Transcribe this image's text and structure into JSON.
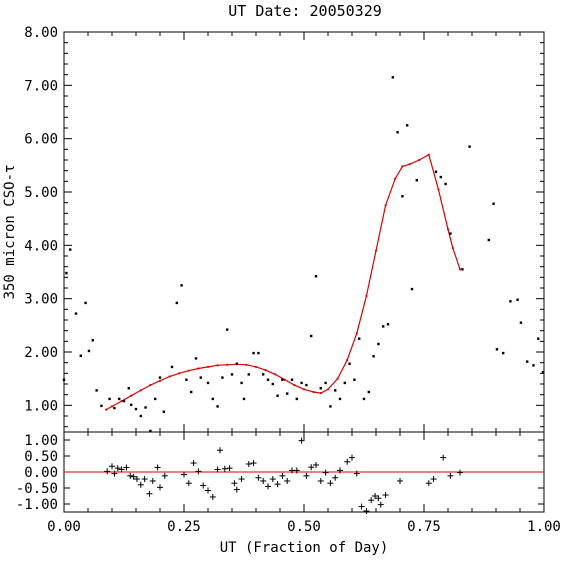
{
  "chart_data": {
    "type": "scatter",
    "title": "UT Date: 20050329",
    "xlabel": "UT (Fraction of Day)",
    "ylabel": "350 micron CSO-τ",
    "xlim": [
      0.0,
      1.0
    ],
    "x_ticks": [
      "0.00",
      "0.25",
      "0.50",
      "0.75",
      "1.00"
    ],
    "top_panel": {
      "ylim": [
        0.5,
        8.0
      ],
      "y_ticks": [
        "1.00",
        "2.00",
        "3.00",
        "4.00",
        "5.00",
        "6.00",
        "7.00",
        "8.00"
      ],
      "points": [
        [
          0.0,
          1.48
        ],
        [
          0.005,
          3.48
        ],
        [
          0.013,
          3.92
        ],
        [
          0.025,
          2.72
        ],
        [
          0.035,
          1.93
        ],
        [
          0.045,
          2.92
        ],
        [
          0.052,
          2.02
        ],
        [
          0.06,
          2.22
        ],
        [
          0.068,
          1.28
        ],
        [
          0.078,
          0.99
        ],
        [
          0.095,
          1.12
        ],
        [
          0.105,
          0.95
        ],
        [
          0.115,
          1.12
        ],
        [
          0.125,
          1.08
        ],
        [
          0.135,
          1.32
        ],
        [
          0.14,
          1.01
        ],
        [
          0.15,
          0.93
        ],
        [
          0.16,
          0.8
        ],
        [
          0.17,
          0.96
        ],
        [
          0.18,
          0.52
        ],
        [
          0.19,
          1.12
        ],
        [
          0.2,
          1.52
        ],
        [
          0.208,
          0.88
        ],
        [
          0.225,
          1.72
        ],
        [
          0.235,
          2.92
        ],
        [
          0.245,
          3.25
        ],
        [
          0.255,
          1.48
        ],
        [
          0.265,
          1.25
        ],
        [
          0.275,
          1.88
        ],
        [
          0.285,
          1.52
        ],
        [
          0.3,
          1.42
        ],
        [
          0.31,
          1.12
        ],
        [
          0.32,
          0.98
        ],
        [
          0.33,
          1.52
        ],
        [
          0.34,
          2.42
        ],
        [
          0.35,
          1.58
        ],
        [
          0.36,
          1.78
        ],
        [
          0.37,
          1.42
        ],
        [
          0.375,
          1.12
        ],
        [
          0.385,
          1.58
        ],
        [
          0.395,
          1.98
        ],
        [
          0.405,
          1.98
        ],
        [
          0.415,
          1.58
        ],
        [
          0.425,
          1.48
        ],
        [
          0.435,
          1.4
        ],
        [
          0.445,
          1.18
        ],
        [
          0.455,
          1.48
        ],
        [
          0.465,
          1.22
        ],
        [
          0.475,
          1.48
        ],
        [
          0.485,
          1.12
        ],
        [
          0.495,
          1.42
        ],
        [
          0.505,
          1.38
        ],
        [
          0.515,
          2.3
        ],
        [
          0.525,
          3.42
        ],
        [
          0.535,
          1.32
        ],
        [
          0.545,
          1.42
        ],
        [
          0.555,
          0.98
        ],
        [
          0.565,
          1.28
        ],
        [
          0.575,
          1.12
        ],
        [
          0.585,
          1.42
        ],
        [
          0.595,
          1.78
        ],
        [
          0.605,
          1.48
        ],
        [
          0.615,
          2.25
        ],
        [
          0.625,
          1.12
        ],
        [
          0.635,
          1.25
        ],
        [
          0.645,
          1.92
        ],
        [
          0.655,
          2.15
        ],
        [
          0.665,
          2.48
        ],
        [
          0.675,
          2.52
        ],
        [
          0.685,
          7.15
        ],
        [
          0.695,
          6.12
        ],
        [
          0.705,
          4.92
        ],
        [
          0.715,
          6.25
        ],
        [
          0.725,
          3.18
        ],
        [
          0.735,
          5.22
        ],
        [
          0.775,
          5.38
        ],
        [
          0.785,
          5.28
        ],
        [
          0.795,
          5.15
        ],
        [
          0.805,
          4.22
        ],
        [
          0.83,
          3.55
        ],
        [
          0.845,
          5.85
        ],
        [
          0.885,
          4.1
        ],
        [
          0.895,
          4.78
        ],
        [
          0.902,
          2.05
        ],
        [
          0.915,
          1.98
        ],
        [
          0.93,
          2.95
        ],
        [
          0.945,
          2.98
        ],
        [
          0.952,
          2.55
        ],
        [
          0.965,
          1.82
        ],
        [
          0.978,
          1.75
        ],
        [
          0.988,
          2.25
        ],
        [
          0.998,
          1.62
        ]
      ],
      "fit_curve": [
        [
          0.088,
          0.92
        ],
        [
          0.1,
          0.98
        ],
        [
          0.12,
          1.08
        ],
        [
          0.14,
          1.18
        ],
        [
          0.16,
          1.28
        ],
        [
          0.18,
          1.38
        ],
        [
          0.2,
          1.46
        ],
        [
          0.22,
          1.54
        ],
        [
          0.24,
          1.6
        ],
        [
          0.26,
          1.65
        ],
        [
          0.28,
          1.69
        ],
        [
          0.3,
          1.72
        ],
        [
          0.32,
          1.75
        ],
        [
          0.34,
          1.76
        ],
        [
          0.36,
          1.77
        ],
        [
          0.38,
          1.76
        ],
        [
          0.4,
          1.72
        ],
        [
          0.42,
          1.66
        ],
        [
          0.44,
          1.58
        ],
        [
          0.46,
          1.48
        ],
        [
          0.48,
          1.38
        ],
        [
          0.5,
          1.3
        ],
        [
          0.52,
          1.25
        ],
        [
          0.535,
          1.23
        ],
        [
          0.55,
          1.3
        ],
        [
          0.57,
          1.5
        ],
        [
          0.59,
          1.85
        ],
        [
          0.61,
          2.35
        ],
        [
          0.63,
          3.05
        ],
        [
          0.65,
          3.9
        ],
        [
          0.67,
          4.75
        ],
        [
          0.69,
          5.25
        ],
        [
          0.705,
          5.48
        ],
        [
          0.72,
          5.52
        ],
        [
          0.74,
          5.6
        ],
        [
          0.76,
          5.7
        ],
        [
          0.78,
          5.05
        ],
        [
          0.8,
          4.3
        ],
        [
          0.81,
          3.95
        ],
        [
          0.825,
          3.55
        ]
      ]
    },
    "bottom_panel": {
      "ylim": [
        -1.25,
        1.25
      ],
      "y_ticks": [
        "1.00",
        "0.50",
        "0.00",
        "-0.50",
        "-1.00"
      ],
      "reference_line": 0.0,
      "points": [
        [
          0.09,
          0.02
        ],
        [
          0.1,
          0.18
        ],
        [
          0.105,
          -0.05
        ],
        [
          0.112,
          0.12
        ],
        [
          0.12,
          0.08
        ],
        [
          0.13,
          0.14
        ],
        [
          0.138,
          -0.12
        ],
        [
          0.145,
          -0.15
        ],
        [
          0.152,
          -0.22
        ],
        [
          0.16,
          -0.4
        ],
        [
          0.168,
          -0.22
        ],
        [
          0.178,
          -0.68
        ],
        [
          0.185,
          -0.28
        ],
        [
          0.195,
          0.14
        ],
        [
          0.2,
          -0.48
        ],
        [
          0.21,
          -0.12
        ],
        [
          0.25,
          -0.08
        ],
        [
          0.26,
          -0.35
        ],
        [
          0.27,
          0.28
        ],
        [
          0.28,
          0.02
        ],
        [
          0.29,
          -0.42
        ],
        [
          0.3,
          -0.58
        ],
        [
          0.31,
          -0.78
        ],
        [
          0.32,
          0.08
        ],
        [
          0.325,
          0.68
        ],
        [
          0.335,
          0.1
        ],
        [
          0.345,
          0.12
        ],
        [
          0.355,
          -0.35
        ],
        [
          0.36,
          -0.55
        ],
        [
          0.37,
          -0.22
        ],
        [
          0.385,
          0.25
        ],
        [
          0.395,
          0.28
        ],
        [
          0.405,
          -0.18
        ],
        [
          0.415,
          -0.28
        ],
        [
          0.425,
          -0.45
        ],
        [
          0.435,
          -0.22
        ],
        [
          0.445,
          -0.38
        ],
        [
          0.455,
          -0.12
        ],
        [
          0.465,
          -0.28
        ],
        [
          0.475,
          0.05
        ],
        [
          0.485,
          0.05
        ],
        [
          0.495,
          0.98
        ],
        [
          0.505,
          -0.12
        ],
        [
          0.515,
          0.15
        ],
        [
          0.525,
          0.22
        ],
        [
          0.535,
          -0.28
        ],
        [
          0.545,
          -0.02
        ],
        [
          0.555,
          -0.35
        ],
        [
          0.565,
          -0.18
        ],
        [
          0.575,
          0.05
        ],
        [
          0.59,
          0.32
        ],
        [
          0.6,
          0.45
        ],
        [
          0.61,
          -0.05
        ],
        [
          0.62,
          -1.08
        ],
        [
          0.63,
          -1.22
        ],
        [
          0.64,
          -0.88
        ],
        [
          0.648,
          -0.75
        ],
        [
          0.655,
          -0.82
        ],
        [
          0.66,
          -1.02
        ],
        [
          0.67,
          -0.72
        ],
        [
          0.7,
          -0.28
        ],
        [
          0.76,
          -0.35
        ],
        [
          0.77,
          -0.22
        ],
        [
          0.79,
          0.45
        ],
        [
          0.805,
          -0.12
        ],
        [
          0.825,
          -0.02
        ]
      ]
    }
  }
}
